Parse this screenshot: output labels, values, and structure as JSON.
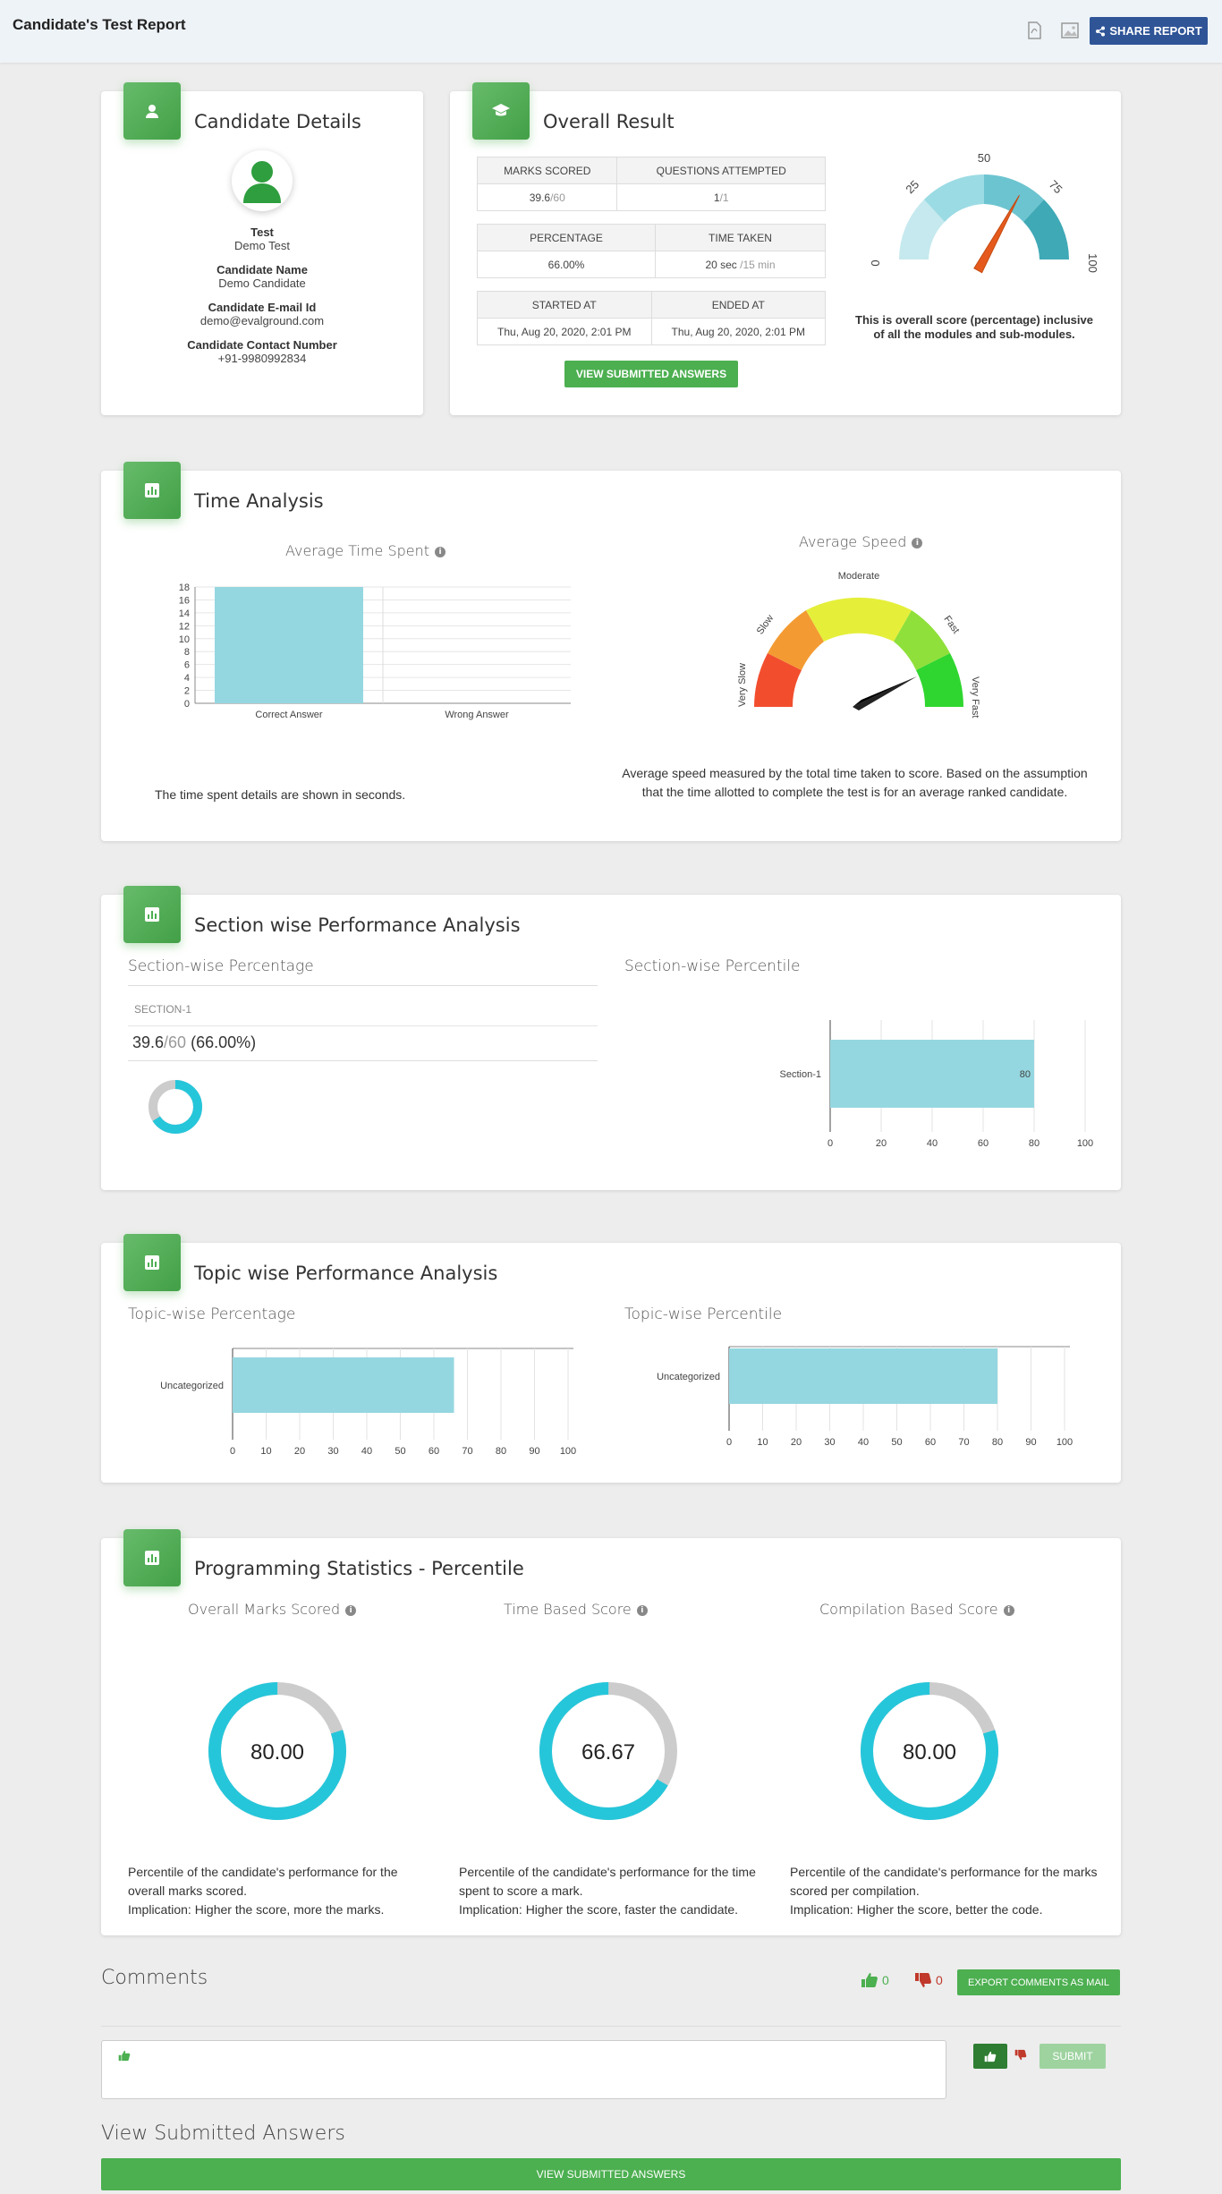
{
  "header": {
    "title": "Candidate's Test Report",
    "share_label": "SHARE REPORT"
  },
  "candidate": {
    "title": "Candidate Details",
    "fields": [
      {
        "label": "Test",
        "value": "Demo Test"
      },
      {
        "label": "Candidate Name",
        "value": "Demo Candidate"
      },
      {
        "label": "Candidate E-mail Id",
        "value": "demo@evalground.com"
      },
      {
        "label": "Candidate Contact Number",
        "value": "+91-9980992834"
      }
    ]
  },
  "overall": {
    "title": "Overall Result",
    "marks_scored_label": "MARKS SCORED",
    "marks_scored": "39.6",
    "marks_total": "/60",
    "questions_label": "QUESTIONS ATTEMPTED",
    "questions": "1",
    "questions_total": "/1",
    "percentage_label": "PERCENTAGE",
    "percentage": "66.00%",
    "time_label": "TIME TAKEN",
    "time": "20 sec",
    "time_total": "/15 min",
    "started_label": "STARTED AT",
    "started": "Thu, Aug 20, 2020, 2:01 PM",
    "ended_label": "ENDED AT",
    "ended": "Thu, Aug 20, 2020, 2:01 PM",
    "view_btn": "VIEW SUBMITTED ANSWERS",
    "gauge_ticks": [
      "0",
      "25",
      "50",
      "75",
      "100"
    ],
    "gauge_value": 66,
    "gauge_note": "This is overall score (percentage) inclusive of all the modules and sub-modules."
  },
  "time_analysis": {
    "title": "Time Analysis",
    "avg_time_title": "Average Time Spent",
    "avg_speed_title": "Average Speed",
    "time_note": "The time spent details are shown in seconds.",
    "speed_labels": [
      "Very Slow",
      "Slow",
      "Moderate",
      "Fast",
      "Very Fast"
    ],
    "speed_note": "Average speed measured by the total time taken to score. Based on the assumption that the time allotted to complete the test is for an average ranked candidate."
  },
  "section": {
    "title": "Section wise Performance Analysis",
    "pct_title": "Section-wise Percentage",
    "pctl_title": "Section-wise Percentile",
    "name": "SECTION-1",
    "score": "39.6",
    "total": "/60",
    "pct": "(66.00%)"
  },
  "topic": {
    "title": "Topic wise Performance Analysis",
    "pct_title": "Topic-wise Percentage",
    "pctl_title": "Topic-wise Percentile"
  },
  "programming": {
    "title": "Programming Statistics - Percentile",
    "items": [
      {
        "title": "Overall Marks Scored",
        "value": "80.00",
        "pct": 80,
        "desc": "Percentile of the candidate's performance for the overall marks scored.",
        "impl": "Implication: Higher the score, more the marks."
      },
      {
        "title": "Time Based Score",
        "value": "66.67",
        "pct": 66.67,
        "desc": "Percentile of the candidate's performance for the time spent to score a mark.",
        "impl": "Implication: Higher the score, faster the candidate."
      },
      {
        "title": "Compilation Based Score",
        "value": "80.00",
        "pct": 80,
        "desc": "Percentile of the candidate's performance for the marks scored per compilation.",
        "impl": "Implication: Higher the score, better the code."
      }
    ]
  },
  "comments": {
    "title": "Comments",
    "likes": "0",
    "dislikes": "0",
    "export_btn": "EXPORT COMMENTS AS MAIL",
    "submit_btn": "SUBMIT"
  },
  "view_answers": {
    "title": "View Submitted Answers",
    "btn": "VIEW SUBMITTED ANSWERS"
  },
  "colors": {
    "accent_green": "#4caf50",
    "bar": "#95d7e0",
    "donut": "#26c6da",
    "share": "#2f5597"
  },
  "chart_data": [
    {
      "type": "bar",
      "title": "Average Time Spent",
      "categories": [
        "Correct Answer",
        "Wrong Answer"
      ],
      "values": [
        18,
        0
      ],
      "yticks": [
        0,
        2,
        4,
        6,
        8,
        10,
        12,
        14,
        16,
        18
      ],
      "ylim": [
        0,
        18
      ]
    },
    {
      "type": "bar",
      "title": "Section-wise Percentile",
      "orientation": "horizontal",
      "categories": [
        "Section-1"
      ],
      "values": [
        80
      ],
      "data_labels": [
        "80"
      ],
      "xticks": [
        0,
        20,
        40,
        60,
        80,
        100
      ],
      "xlim": [
        0,
        100
      ]
    },
    {
      "type": "bar",
      "title": "Topic-wise Percentage",
      "orientation": "horizontal",
      "categories": [
        "Uncategorized"
      ],
      "values": [
        66
      ],
      "xticks": [
        0,
        10,
        20,
        30,
        40,
        50,
        60,
        70,
        80,
        90,
        100
      ],
      "xlim": [
        0,
        100
      ]
    },
    {
      "type": "bar",
      "title": "Topic-wise Percentile",
      "orientation": "horizontal",
      "categories": [
        "Uncategorized"
      ],
      "values": [
        80
      ],
      "xticks": [
        0,
        10,
        20,
        30,
        40,
        50,
        60,
        70,
        80,
        90,
        100
      ],
      "xlim": [
        0,
        100
      ]
    },
    {
      "type": "pie",
      "title": "Section-wise Percentage",
      "values": [
        66,
        34
      ]
    }
  ]
}
